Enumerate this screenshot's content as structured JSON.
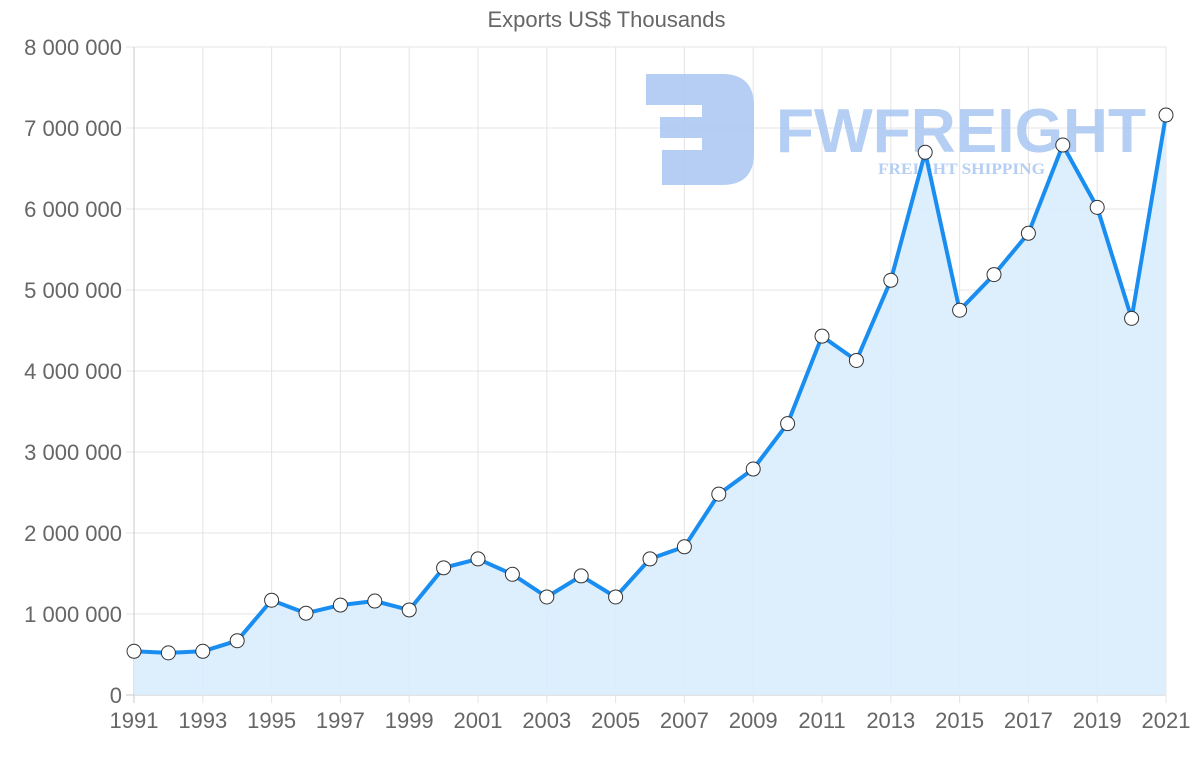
{
  "chart_data": {
    "type": "area",
    "title": "Exports US$ Thousands",
    "xlabel": "",
    "ylabel": "",
    "x": [
      1991,
      1992,
      1993,
      1994,
      1995,
      1996,
      1997,
      1998,
      1999,
      2000,
      2001,
      2002,
      2003,
      2004,
      2005,
      2006,
      2007,
      2008,
      2009,
      2010,
      2011,
      2012,
      2013,
      2014,
      2015,
      2016,
      2017,
      2018,
      2019,
      2020,
      2021
    ],
    "series": [
      {
        "name": "Exports US$ Thousands",
        "values": [
          540000,
          520000,
          540000,
          670000,
          1170000,
          1010000,
          1110000,
          1160000,
          1050000,
          1570000,
          1680000,
          1490000,
          1210000,
          1470000,
          1210000,
          1680000,
          1830000,
          2480000,
          2790000,
          3350000,
          4430000,
          4130000,
          5120000,
          6700000,
          4750000,
          5190000,
          5700000,
          6790000,
          6020000,
          4650000,
          7160000
        ]
      }
    ],
    "x_tick_labels": [
      "1991",
      "1993",
      "1995",
      "1997",
      "1999",
      "2001",
      "2003",
      "2005",
      "2007",
      "2009",
      "2011",
      "2013",
      "2015",
      "2017",
      "2019",
      "2021"
    ],
    "y_tick_labels": [
      "0",
      "1 000 000",
      "2 000 000",
      "3 000 000",
      "4 000 000",
      "5 000 000",
      "6 000 000",
      "7 000 000",
      "8 000 000"
    ],
    "ylim": [
      0,
      8000000
    ],
    "xlim": [
      1991,
      2021
    ],
    "grid": true,
    "legend": "none",
    "colors": {
      "line": "#1a8ef0",
      "fill": "#d9ecfd",
      "point_fill": "#ffffff",
      "point_stroke": "#333333"
    }
  },
  "watermark": {
    "brand": "FWFREIGHT",
    "tagline": "FREIGHT SHIPPING",
    "color": "#a9c6f2"
  }
}
